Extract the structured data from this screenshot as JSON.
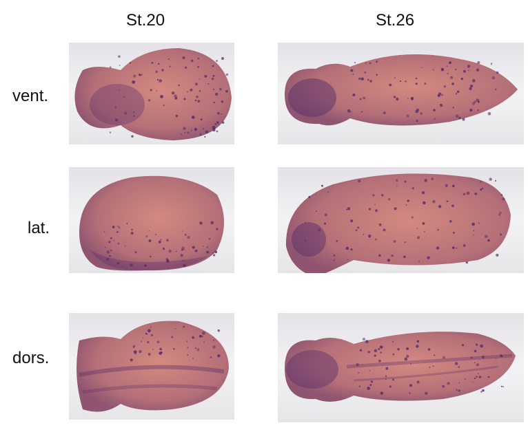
{
  "columns": [
    {
      "label": "St.20"
    },
    {
      "label": "St.26"
    }
  ],
  "rows": [
    {
      "label": "vent."
    },
    {
      "label": "lat."
    },
    {
      "label": "dors."
    }
  ],
  "colors": {
    "embryo": "#c07a78",
    "stain": "#5a2f6a",
    "background": "#ecebee"
  }
}
